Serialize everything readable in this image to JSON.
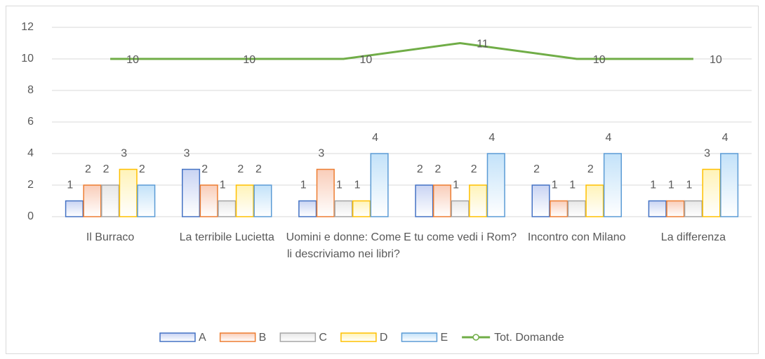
{
  "chart_data": {
    "type": "bar",
    "categories": [
      "Il Burraco",
      "La terribile Lucietta",
      "Uomini e donne: Come li descriviamo nei libri?",
      "E tu come vedi i Rom?",
      "Incontro con Milano",
      "La differenza"
    ],
    "series": [
      {
        "name": "A",
        "type": "bar",
        "color": "#4472c4",
        "fill": "#c9d4f3",
        "values": [
          1,
          3,
          1,
          2,
          2,
          1
        ]
      },
      {
        "name": "B",
        "type": "bar",
        "color": "#ed7d31",
        "fill": "#f9cdb9",
        "values": [
          2,
          2,
          3,
          2,
          1,
          1
        ]
      },
      {
        "name": "C",
        "type": "bar",
        "color": "#a5a5a5",
        "fill": "#e7e7e7",
        "values": [
          2,
          1,
          1,
          1,
          1,
          1
        ]
      },
      {
        "name": "D",
        "type": "bar",
        "color": "#ffc000",
        "fill": "#fff3b8",
        "values": [
          3,
          2,
          1,
          2,
          2,
          3
        ]
      },
      {
        "name": "E",
        "type": "bar",
        "color": "#5b9bd5",
        "fill": "#c3e2f9",
        "values": [
          2,
          2,
          4,
          4,
          4,
          4
        ]
      },
      {
        "name": "Tot. Domande",
        "type": "line",
        "color": "#70ad47",
        "values": [
          10,
          10,
          10,
          11,
          10,
          10
        ]
      }
    ],
    "ylim": [
      0,
      12
    ],
    "yticks": [
      0,
      2,
      4,
      6,
      8,
      10,
      12
    ],
    "grid": true,
    "legend": "bottom"
  }
}
